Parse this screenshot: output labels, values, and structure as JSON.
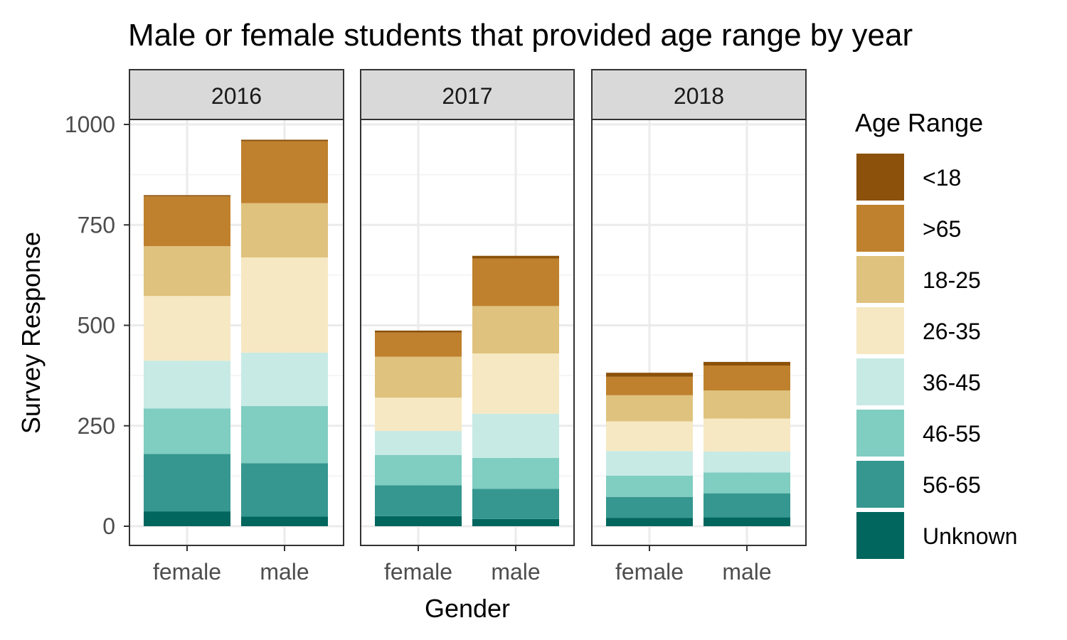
{
  "chart_data": {
    "type": "bar",
    "stacked": true,
    "title": "Male or female students that provided age range by year",
    "xlabel": "Gender",
    "ylabel": "Survey Response",
    "ylim": [
      0,
      1130
    ],
    "yticks": [
      0,
      250,
      500,
      750,
      1000
    ],
    "grid": true,
    "legend": {
      "title": "Age Range",
      "position": "right"
    },
    "categories": [
      "female",
      "male"
    ],
    "facets": [
      "2016",
      "2017",
      "2018"
    ],
    "series": [
      {
        "name": "Unknown",
        "color": "#01665E",
        "values": {
          "2016": [
            37,
            24
          ],
          "2017": [
            25,
            18
          ],
          "2018": [
            21,
            22
          ]
        }
      },
      {
        "name": "56-65",
        "color": "#35978F",
        "values": {
          "2016": [
            143,
            133
          ],
          "2017": [
            77,
            75
          ],
          "2018": [
            52,
            60
          ]
        }
      },
      {
        "name": "46-55",
        "color": "#80CDC1",
        "values": {
          "2016": [
            113,
            142
          ],
          "2017": [
            75,
            77
          ],
          "2018": [
            53,
            52
          ]
        }
      },
      {
        "name": "36-45",
        "color": "#C7EAE5",
        "values": {
          "2016": [
            119,
            133
          ],
          "2017": [
            60,
            110
          ],
          "2018": [
            61,
            52
          ]
        }
      },
      {
        "name": "26-35",
        "color": "#F6E8C3",
        "values": {
          "2016": [
            161,
            237
          ],
          "2017": [
            83,
            150
          ],
          "2018": [
            74,
            82
          ]
        }
      },
      {
        "name": "18-25",
        "color": "#DFC27D",
        "values": {
          "2016": [
            124,
            135
          ],
          "2017": [
            102,
            118
          ],
          "2018": [
            65,
            70
          ]
        }
      },
      {
        "name": ">65",
        "color": "#BF812D",
        "values": {
          "2016": [
            124,
            154
          ],
          "2017": [
            60,
            118
          ],
          "2018": [
            46,
            62
          ]
        }
      },
      {
        "name": "<18",
        "color": "#8C510A",
        "values": {
          "2016": [
            3,
            4
          ],
          "2017": [
            5,
            7
          ],
          "2018": [
            10,
            9
          ]
        }
      }
    ]
  }
}
